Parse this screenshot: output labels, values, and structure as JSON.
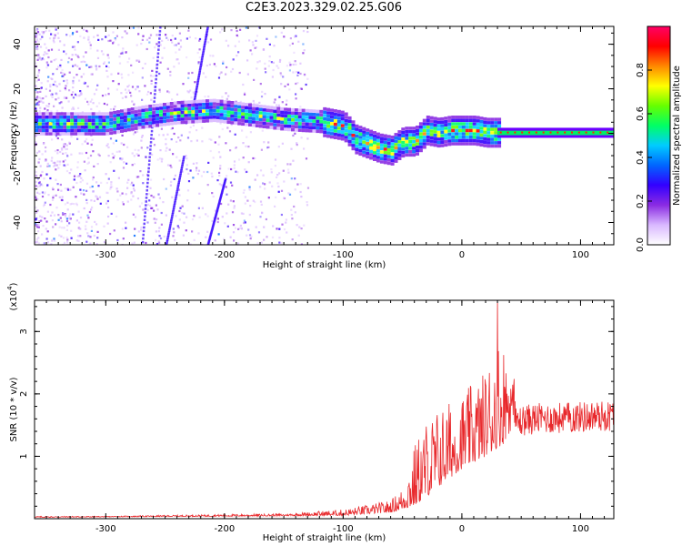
{
  "title": "C2E3.2023.329.02.25.G06",
  "chart_data": [
    {
      "type": "heatmap",
      "xlabel": "Height of straight line (km)",
      "ylabel": "Frequency (Hz)",
      "xlim": [
        -360,
        128
      ],
      "ylim": [
        -50,
        48
      ],
      "x_ticks": [
        -300,
        -200,
        -100,
        0,
        100
      ],
      "y_ticks": [
        -40,
        -20,
        0,
        20,
        40
      ],
      "colorbar": {
        "label": "Normalized spectral amplitude",
        "range": [
          0,
          1
        ],
        "ticks": [
          "0.0",
          "0.2",
          "0.4",
          "0.6",
          "0.8"
        ],
        "colors": [
          "#ffffff",
          "#d9b8ff",
          "#8a2be2",
          "#3300ff",
          "#0066ff",
          "#00ccff",
          "#00ff66",
          "#66ff00",
          "#ffff00",
          "#ff8800",
          "#ff0000",
          "#ff0066"
        ]
      },
      "ridge": {
        "x": [
          -355,
          -330,
          -300,
          -270,
          -240,
          -210,
          -180,
          -150,
          -120,
          -100,
          -90,
          -80,
          -70,
          -60,
          -50,
          -40,
          -30,
          -20,
          -10,
          0,
          10,
          20,
          30,
          60,
          90,
          128
        ],
        "y": [
          5,
          5,
          5,
          8,
          10,
          11,
          9,
          7,
          6,
          4,
          -2,
          -4,
          -6,
          -7,
          -3,
          -3,
          2,
          1,
          2,
          2,
          2,
          1,
          1,
          0,
          0,
          0
        ]
      },
      "grid": false
    },
    {
      "type": "line",
      "xlabel": "Height of straight line (km)",
      "ylabel": "SNR (10 * v/v)",
      "y_multiplier": "(x10",
      "y_multiplier_exp": "4",
      "y_multiplier_close": ")",
      "xlim": [
        -360,
        128
      ],
      "ylim": [
        0,
        3.5
      ],
      "x_ticks": [
        -300,
        -200,
        -100,
        0,
        100
      ],
      "y_ticks": [
        1,
        2,
        3
      ],
      "color": "#e8282b",
      "envelope": {
        "x": [
          -360,
          -300,
          -200,
          -150,
          -100,
          -80,
          -60,
          -50,
          -40,
          -30,
          -20,
          -10,
          0,
          10,
          20,
          30,
          35,
          40,
          60,
          80,
          100,
          128
        ],
        "y": [
          0.04,
          0.04,
          0.07,
          0.08,
          0.15,
          0.22,
          0.3,
          0.5,
          1.2,
          1.6,
          1.8,
          1.9,
          2.0,
          2.2,
          2.4,
          3.0,
          2.8,
          2.3,
          2.1,
          1.9,
          1.9,
          1.8
        ]
      },
      "baseline": {
        "x": [
          -360,
          -100,
          -60,
          -40,
          -20,
          0,
          20,
          35,
          45,
          60,
          128
        ],
        "y": [
          0.02,
          0.05,
          0.1,
          0.2,
          0.5,
          0.8,
          1.0,
          1.2,
          1.55,
          1.6,
          1.65
        ]
      },
      "grid": false
    }
  ]
}
